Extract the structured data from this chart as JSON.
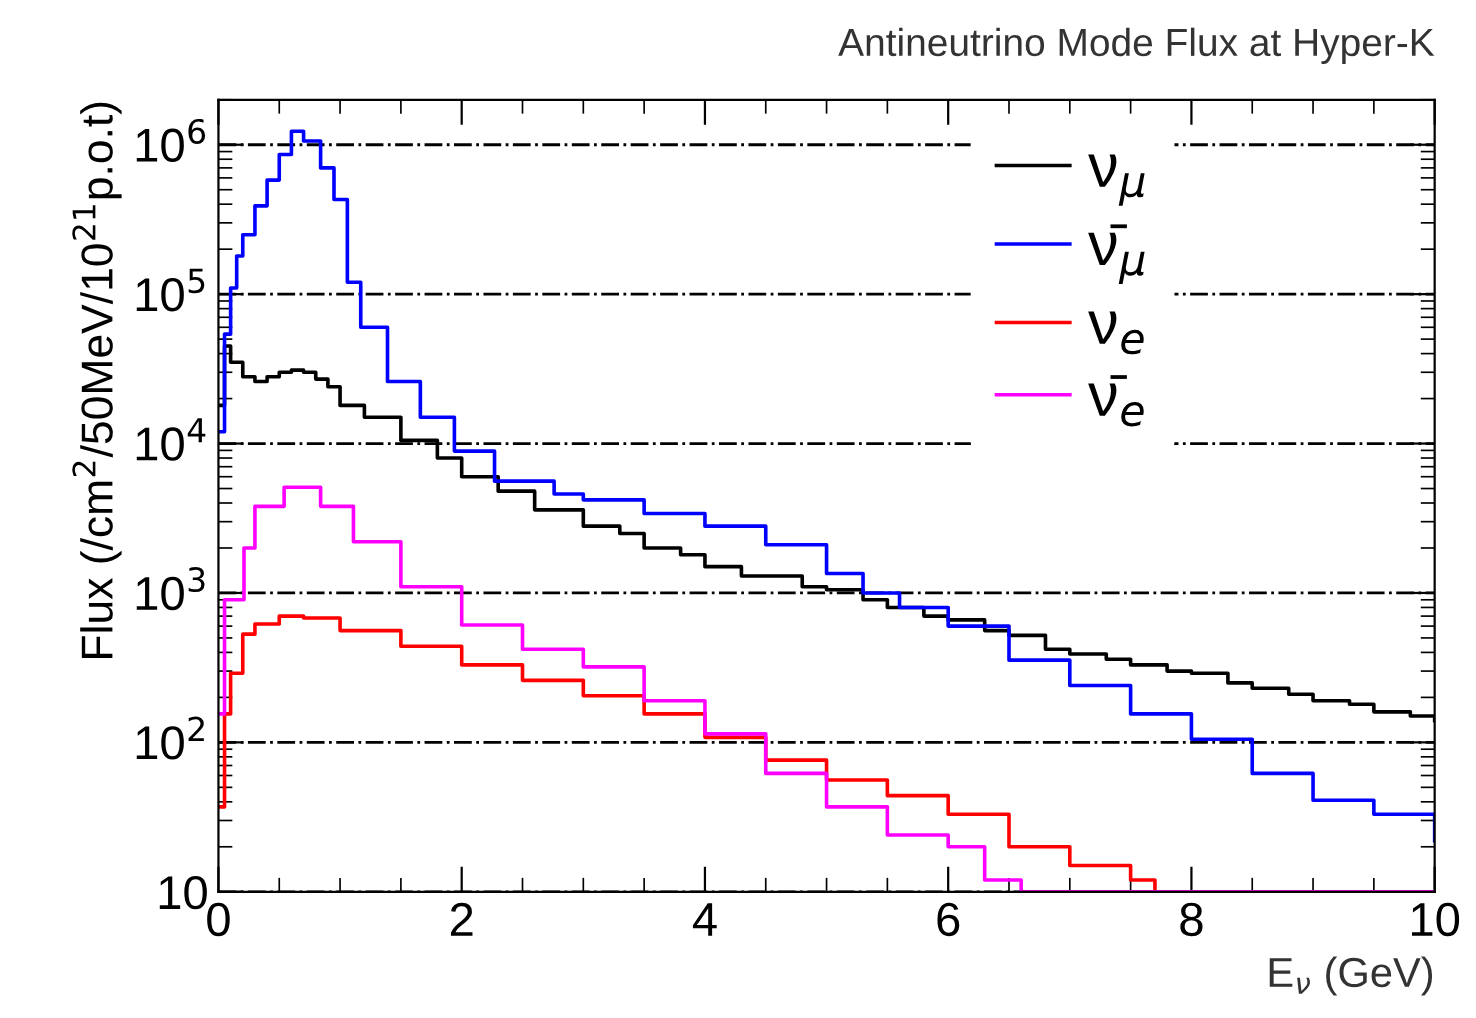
{
  "chart_data": {
    "type": "step",
    "title": "Antineutrino Mode Flux at Hyper-K",
    "xlabel": "E$_{ν}$ (GeV)",
    "ylabel": "Flux (/cm$^{2}$/50MeV/10$^{21}$p.o.t)",
    "log": "y",
    "xlim": [
      0,
      10
    ],
    "ylim": [
      10,
      2000000
    ],
    "xticks": [
      0,
      2,
      4,
      6,
      8,
      10
    ],
    "yticks": [
      10,
      {
        "value": 100,
        "label": "10$^{2}$"
      },
      {
        "value": 1000,
        "label": "10$^{3}$"
      },
      {
        "value": 10000,
        "label": "10$^{4}$"
      },
      {
        "value": 100000,
        "label": "10$^{5}$"
      },
      {
        "value": 1000000,
        "label": "10$^{6}$"
      }
    ],
    "grid": "y",
    "legend": "top right",
    "line_style": "solid",
    "marker": "none",
    "series": [
      {
        "name": "ν$_{μ}$",
        "color": "#000000",
        "x": [
          0,
          0.05,
          0.1,
          0.2,
          0.3,
          0.4,
          0.5,
          0.6,
          0.7,
          0.8,
          0.9,
          1.0,
          1.2,
          1.5,
          1.8,
          2.0,
          2.3,
          2.6,
          3.0,
          3.3,
          3.5,
          3.8,
          4.0,
          4.3,
          4.5,
          4.8,
          5.0,
          5.3,
          5.5,
          5.8,
          6.0,
          6.3,
          6.5,
          6.8,
          7.0,
          7.3,
          7.5,
          7.8,
          8.0,
          8.3,
          8.5,
          8.8,
          9.0,
          9.3,
          9.5,
          9.8,
          10.0
        ],
        "values": [
          18000,
          45000,
          35000,
          28000,
          26000,
          28000,
          30000,
          31000,
          30000,
          27000,
          24000,
          18000,
          15000,
          10500,
          8000,
          6000,
          4800,
          3600,
          2800,
          2500,
          2000,
          1800,
          1500,
          1300,
          1300,
          1100,
          1050,
          900,
          800,
          700,
          660,
          560,
          520,
          420,
          390,
          360,
          330,
          300,
          290,
          250,
          230,
          210,
          190,
          180,
          160,
          150,
          140
        ]
      },
      {
        "name": "ν̄$_{μ}$",
        "color": "#0000ff",
        "x": [
          0,
          0.05,
          0.1,
          0.15,
          0.2,
          0.3,
          0.4,
          0.5,
          0.6,
          0.7,
          0.84,
          0.95,
          1.06,
          1.17,
          1.39,
          1.66,
          1.94,
          2.27,
          2.76,
          3.0,
          3.5,
          4.0,
          4.5,
          5.0,
          5.3,
          5.6,
          6.0,
          6.5,
          7.0,
          7.5,
          8.0,
          8.5,
          9.0,
          9.5,
          10.0
        ],
        "values": [
          12000,
          54000,
          110000,
          180000,
          250000,
          390000,
          580000,
          860000,
          1230000,
          1060000,
          700000,
          430000,
          120000,
          60000,
          26000,
          15000,
          8900,
          5600,
          4600,
          4200,
          3400,
          2800,
          2100,
          1350,
          1000,
          800,
          600,
          355,
          240,
          155,
          105,
          62,
          41,
          33,
          22
        ]
      },
      {
        "name": "ν$_{e}$",
        "color": "#ff0000",
        "x": [
          0,
          0.05,
          0.1,
          0.2,
          0.3,
          0.5,
          0.7,
          1.0,
          1.5,
          2.0,
          2.5,
          3.0,
          3.5,
          4.0,
          4.5,
          5.0,
          5.5,
          6.0,
          6.5,
          7.0,
          7.5,
          7.7,
          10.0
        ],
        "values": [
          37,
          155,
          290,
          530,
          620,
          700,
          680,
          560,
          440,
          330,
          260,
          205,
          155,
          108,
          76,
          56,
          44,
          33,
          20,
          15,
          12,
          10,
          10
        ]
      },
      {
        "name": "ν̄$_{e}$",
        "color": "#ff00ff",
        "x": [
          0,
          0.05,
          0.21,
          0.3,
          0.54,
          0.84,
          1.11,
          1.5,
          2.0,
          2.5,
          3.0,
          3.5,
          4.0,
          4.5,
          5.0,
          5.5,
          6.0,
          6.3,
          6.6,
          10.0
        ],
        "values": [
          155,
          900,
          2000,
          3800,
          5100,
          3800,
          2200,
          1100,
          610,
          420,
          320,
          190,
          114,
          62,
          37,
          24,
          20,
          12,
          10,
          10
        ]
      }
    ]
  }
}
